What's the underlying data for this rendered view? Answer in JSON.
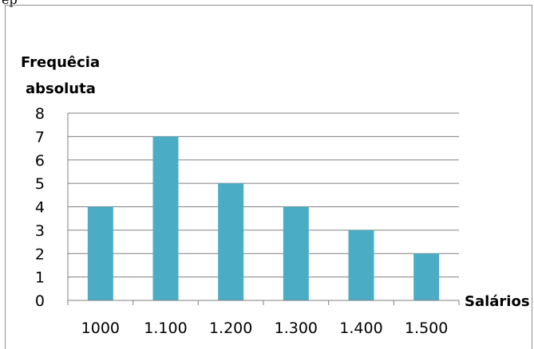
{
  "page": {
    "top_text_fragment": "ep"
  },
  "chart_data": {
    "type": "bar",
    "categories": [
      "1000",
      "1.100",
      "1.200",
      "1.300",
      "1.400",
      "1.500"
    ],
    "values": [
      4,
      7,
      5,
      4,
      3,
      2
    ],
    "ylabel_lines": [
      "Frequêcia",
      "absoluta"
    ],
    "xlabel": "Salários",
    "title": "",
    "ylim": [
      0,
      8
    ],
    "yticks": [
      "0",
      "1",
      "2",
      "3",
      "4",
      "5",
      "6",
      "7",
      "8"
    ],
    "grid": true,
    "legend": "none",
    "bar_color": "#4BACC6",
    "grid_color": "#808080"
  }
}
